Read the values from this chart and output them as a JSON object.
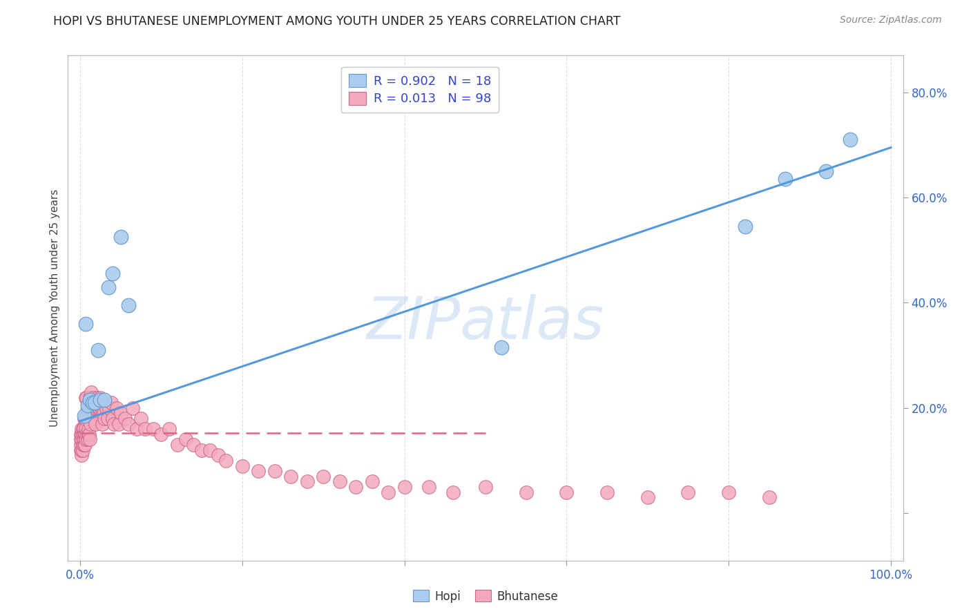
{
  "title": "HOPI VS BHUTANESE UNEMPLOYMENT AMONG YOUTH UNDER 25 YEARS CORRELATION CHART",
  "source": "Source: ZipAtlas.com",
  "ylabel": "Unemployment Among Youth under 25 years",
  "watermark": "ZIPatlas",
  "hopi_R": 0.902,
  "hopi_N": 18,
  "bhutanese_R": 0.013,
  "bhutanese_N": 98,
  "hopi_color": "#aaccee",
  "bhutanese_color": "#f4aabc",
  "hopi_edge_color": "#6699cc",
  "bhutanese_edge_color": "#cc6688",
  "hopi_line_color": "#5599dd",
  "bhutanese_line_color": "#dd6688",
  "background_color": "#ffffff",
  "grid_color": "#cccccc",
  "title_fontsize": 12.5,
  "label_fontsize": 11,
  "legend_fontsize": 13,
  "hopi_x": [
    0.005,
    0.007,
    0.009,
    0.012,
    0.015,
    0.018,
    0.022,
    0.025,
    0.03,
    0.035,
    0.04,
    0.05,
    0.06,
    0.52,
    0.82,
    0.87,
    0.92,
    0.95
  ],
  "hopi_y": [
    0.185,
    0.36,
    0.205,
    0.215,
    0.21,
    0.21,
    0.31,
    0.215,
    0.215,
    0.43,
    0.455,
    0.525,
    0.395,
    0.315,
    0.545,
    0.635,
    0.65,
    0.71
  ],
  "bhu_x": [
    0.001,
    0.001,
    0.001,
    0.001,
    0.002,
    0.002,
    0.002,
    0.002,
    0.002,
    0.003,
    0.003,
    0.003,
    0.003,
    0.004,
    0.004,
    0.005,
    0.005,
    0.005,
    0.006,
    0.006,
    0.006,
    0.007,
    0.007,
    0.007,
    0.008,
    0.008,
    0.009,
    0.009,
    0.01,
    0.01,
    0.011,
    0.012,
    0.012,
    0.013,
    0.014,
    0.015,
    0.016,
    0.016,
    0.017,
    0.018,
    0.019,
    0.02,
    0.021,
    0.022,
    0.023,
    0.024,
    0.025,
    0.026,
    0.027,
    0.028,
    0.029,
    0.03,
    0.032,
    0.034,
    0.036,
    0.038,
    0.04,
    0.042,
    0.045,
    0.048,
    0.05,
    0.055,
    0.06,
    0.065,
    0.07,
    0.075,
    0.08,
    0.09,
    0.1,
    0.11,
    0.12,
    0.13,
    0.14,
    0.15,
    0.16,
    0.17,
    0.18,
    0.2,
    0.22,
    0.24,
    0.26,
    0.28,
    0.3,
    0.32,
    0.34,
    0.36,
    0.38,
    0.4,
    0.43,
    0.46,
    0.5,
    0.55,
    0.6,
    0.65,
    0.7,
    0.75,
    0.8,
    0.85
  ],
  "bhu_y": [
    0.12,
    0.13,
    0.14,
    0.15,
    0.11,
    0.12,
    0.14,
    0.15,
    0.16,
    0.12,
    0.13,
    0.15,
    0.16,
    0.14,
    0.16,
    0.13,
    0.15,
    0.18,
    0.13,
    0.15,
    0.18,
    0.14,
    0.16,
    0.22,
    0.15,
    0.22,
    0.14,
    0.2,
    0.15,
    0.16,
    0.15,
    0.14,
    0.22,
    0.17,
    0.23,
    0.2,
    0.22,
    0.19,
    0.2,
    0.21,
    0.17,
    0.2,
    0.22,
    0.21,
    0.2,
    0.2,
    0.22,
    0.2,
    0.17,
    0.2,
    0.19,
    0.18,
    0.2,
    0.18,
    0.2,
    0.21,
    0.18,
    0.17,
    0.2,
    0.17,
    0.19,
    0.18,
    0.17,
    0.2,
    0.16,
    0.18,
    0.16,
    0.16,
    0.15,
    0.16,
    0.13,
    0.14,
    0.13,
    0.12,
    0.12,
    0.11,
    0.1,
    0.09,
    0.08,
    0.08,
    0.07,
    0.06,
    0.07,
    0.06,
    0.05,
    0.06,
    0.04,
    0.05,
    0.05,
    0.04,
    0.05,
    0.04,
    0.04,
    0.04,
    0.03,
    0.04,
    0.04,
    0.03
  ],
  "hopi_line_x0": 0.0,
  "hopi_line_y0": 0.175,
  "hopi_line_x1": 1.0,
  "hopi_line_y1": 0.695,
  "bhu_line_x0": 0.0,
  "bhu_line_y0": 0.153,
  "bhu_line_x1": 0.5,
  "bhu_line_y1": 0.153,
  "xlim_min": -0.015,
  "xlim_max": 1.015,
  "ylim_min": -0.09,
  "ylim_max": 0.87,
  "ytick_vals": [
    0.0,
    0.2,
    0.4,
    0.6,
    0.8
  ],
  "ytick_labels": [
    "",
    "20.0%",
    "40.0%",
    "60.0%",
    "80.0%"
  ],
  "xtick_vals": [
    0.0,
    0.2,
    0.4,
    0.6,
    0.8,
    1.0
  ],
  "xtick_labels": [
    "0.0%",
    "",
    "",
    "",
    "",
    "100.0%"
  ]
}
